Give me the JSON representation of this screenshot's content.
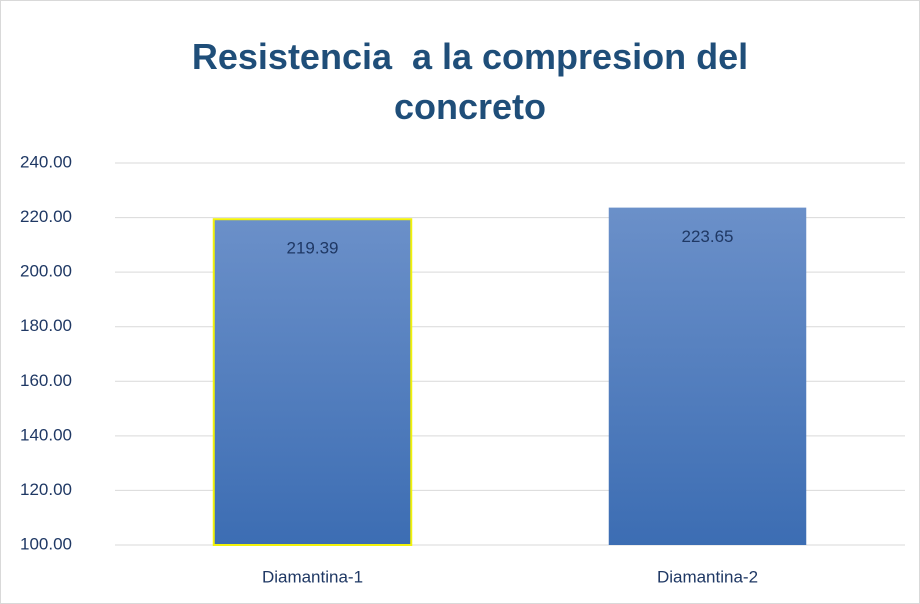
{
  "chart_data": {
    "type": "bar",
    "title": "Resistencia  a la compresion del concreto",
    "categories": [
      "Diamantina-1",
      "Diamantina-2"
    ],
    "values": [
      219.39,
      223.65
    ],
    "color": "#4a7bbf",
    "ylim": [
      100,
      240
    ],
    "yticks": [
      {
        "value": 100,
        "label": "100.00"
      },
      {
        "value": 120,
        "label": "120.00"
      },
      {
        "value": 140,
        "label": "140.00"
      },
      {
        "value": 160,
        "label": "160.00"
      },
      {
        "value": 180,
        "label": "180.00"
      },
      {
        "value": 200,
        "label": "200.00"
      },
      {
        "value": 220,
        "label": "220.00"
      },
      {
        "value": 240,
        "label": "240.00"
      }
    ],
    "grid": true
  }
}
